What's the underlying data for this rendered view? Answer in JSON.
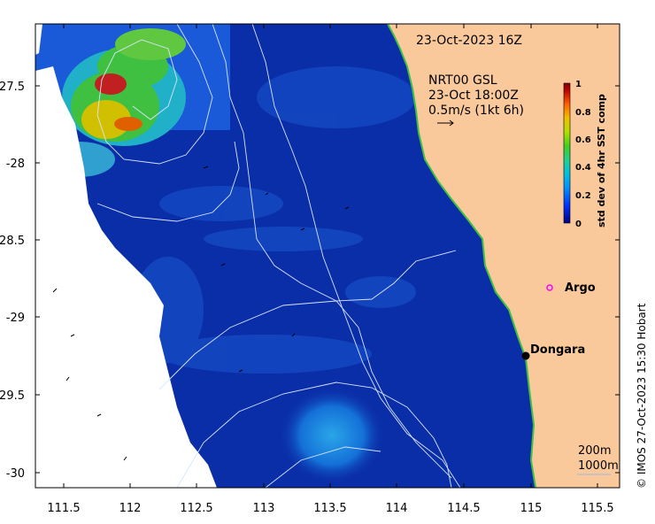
{
  "map": {
    "date_label": "23-Oct-2023 16Z",
    "current_title": "NRT00 GSL",
    "current_time": "23-Oct 18:00Z",
    "current_scale": "0.5m/s (1kt 6h)",
    "colorbar": {
      "label": "std dev of 4hr SST comp",
      "ticks": [
        "0",
        "0.2",
        "0.4",
        "0.6",
        "0.8",
        "1"
      ],
      "colors": [
        "#000080",
        "#0030ff",
        "#00b0ff",
        "#20d0a0",
        "#40d020",
        "#c0e000",
        "#f0c000",
        "#ff6000",
        "#c00000",
        "#800000"
      ]
    },
    "x_ticks": [
      "111.5",
      "112",
      "112.5",
      "113",
      "113.5",
      "114",
      "114.5",
      "115",
      "115.5"
    ],
    "y_ticks": [
      "-27.5",
      "-28",
      "-28.5",
      "-29",
      "-29.5",
      "-30"
    ],
    "markers": [
      {
        "label": "Argo",
        "type": "argo-float"
      },
      {
        "label": "Dongara",
        "type": "town"
      }
    ],
    "contours": [
      "200m",
      "1000m"
    ],
    "land_color": "#f9c99b",
    "water_color": "#0a2ea8",
    "copyright": "© IMOS 27-Oct-2023 15:30 Hobart"
  }
}
